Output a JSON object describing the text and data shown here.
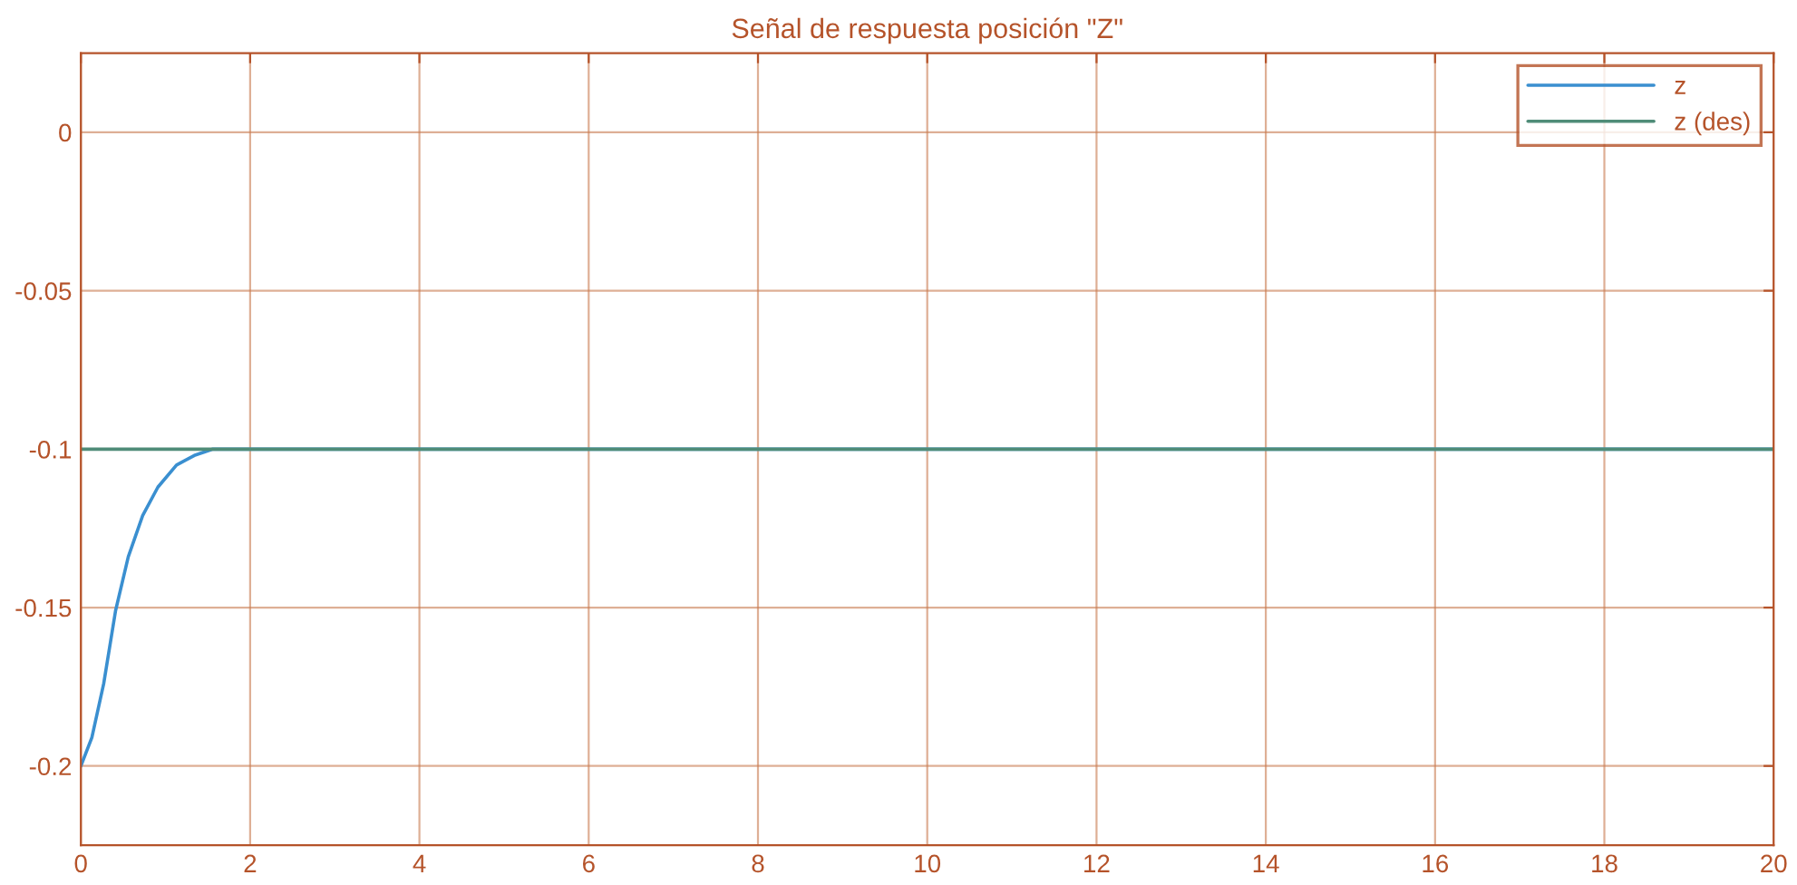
{
  "chart_data": {
    "type": "line",
    "title": "Señal de respuesta posición \"Z\"",
    "xlim": [
      0,
      20
    ],
    "xticks": [
      0,
      2,
      4,
      6,
      8,
      10,
      12,
      14,
      16,
      18,
      20
    ],
    "ylim": [
      -0.225,
      0.025
    ],
    "yticks": [
      -0.2,
      -0.15,
      -0.1,
      -0.05,
      0
    ],
    "grid": true,
    "legend": "top right",
    "series": [
      {
        "name": "z",
        "color": "#3a8fd0",
        "x": [
          0,
          0.13,
          0.27,
          0.41,
          0.56,
          0.73,
          0.91,
          1.13,
          1.34,
          1.56,
          2,
          20
        ],
        "values": [
          -0.2,
          -0.191,
          -0.174,
          -0.151,
          -0.134,
          -0.121,
          -0.112,
          -0.105,
          -0.102,
          -0.1,
          -0.1,
          -0.1
        ]
      },
      {
        "name": "z (des)",
        "color": "#4f8c78",
        "x": [
          0,
          20
        ],
        "values": [
          -0.1,
          -0.1
        ]
      }
    ]
  }
}
